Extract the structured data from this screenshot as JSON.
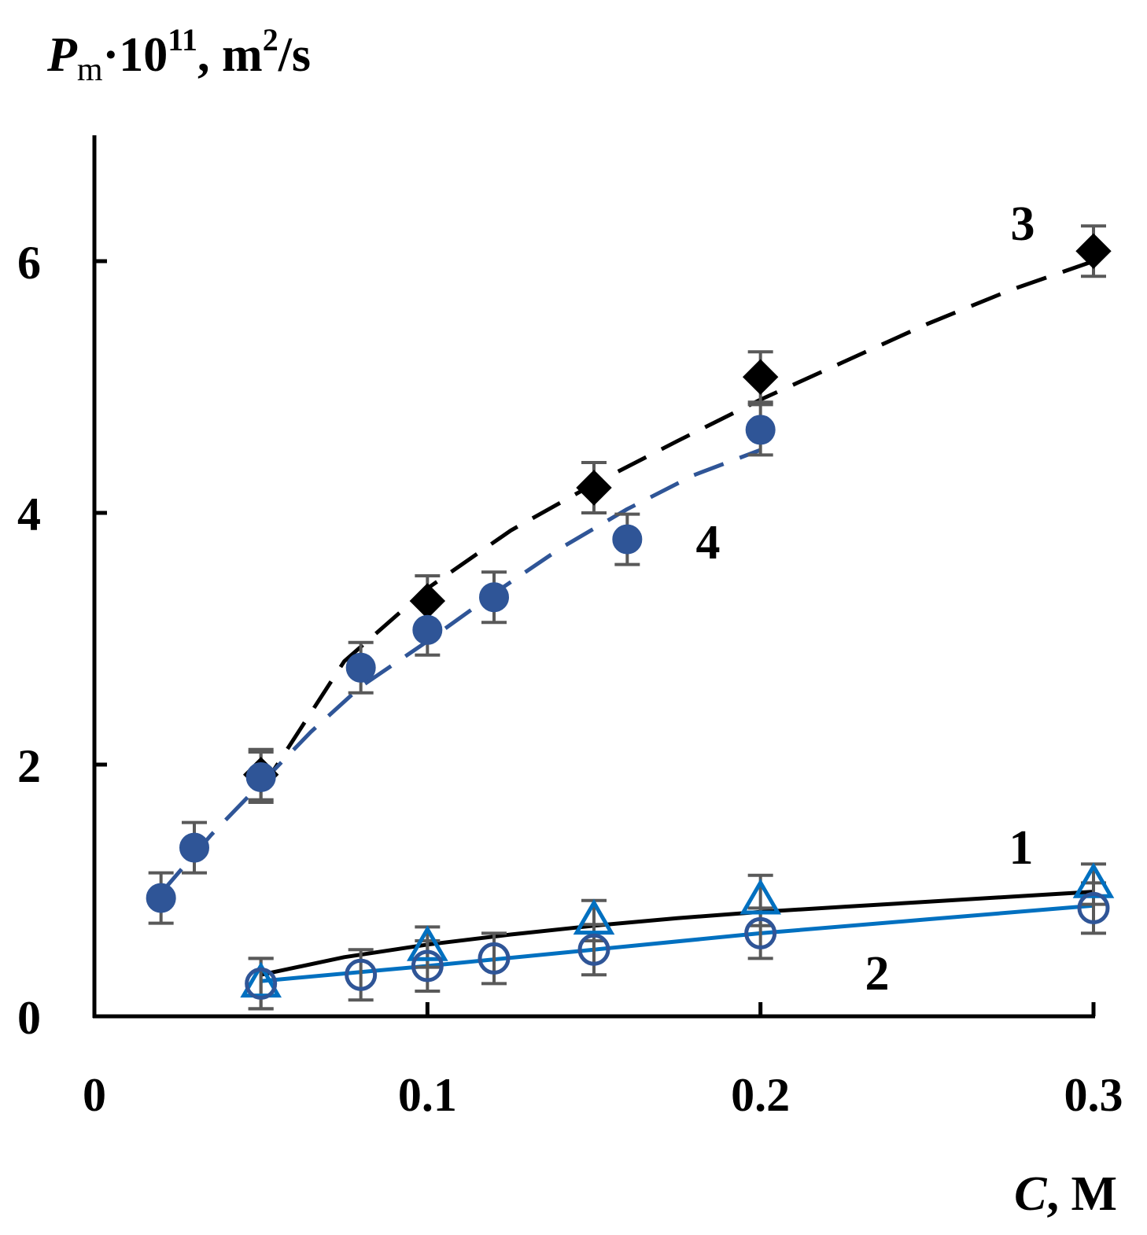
{
  "chart_data": {
    "type": "scatter",
    "title": "",
    "ylabel": {
      "symbol": "P",
      "subscript": "m",
      "text": "·10",
      "superscript": "11",
      "unit_prefix": ", m",
      "unit_sup": "2",
      "unit_suffix": "/s"
    },
    "xlabel": {
      "symbol": "C",
      "unit": ", M"
    },
    "xlim": [
      0,
      0.3
    ],
    "ylim": [
      0,
      7
    ],
    "x_ticks": [
      {
        "value": 0,
        "label": "0"
      },
      {
        "value": 0.1,
        "label": "0.1"
      },
      {
        "value": 0.2,
        "label": "0.2"
      },
      {
        "value": 0.3,
        "label": "0.3"
      }
    ],
    "y_ticks": [
      {
        "value": 0,
        "label": "0"
      },
      {
        "value": 2,
        "label": "2"
      },
      {
        "value": 4,
        "label": "4"
      },
      {
        "value": 6,
        "label": "6"
      }
    ],
    "grid": false,
    "colors": {
      "black": "#000000",
      "blue_dark": "#2f5597",
      "blue_light": "#0070c0",
      "error_bar": "#595959"
    },
    "series": [
      {
        "name": "1",
        "label": "1",
        "marker": "triangle",
        "color": "#0070c0",
        "points": [
          {
            "x": 0.05,
            "y": 0.26,
            "err": 0.2
          },
          {
            "x": 0.1,
            "y": 0.55,
            "err": 0.16
          },
          {
            "x": 0.15,
            "y": 0.76,
            "err": 0.16
          },
          {
            "x": 0.2,
            "y": 0.92,
            "err": 0.2
          },
          {
            "x": 0.3,
            "y": 1.05,
            "err": 0.16
          }
        ],
        "fit": {
          "style": "solid",
          "color": "#000000",
          "x": [
            0.05,
            0.075,
            0.1,
            0.125,
            0.15,
            0.175,
            0.2,
            0.225,
            0.25,
            0.275,
            0.3
          ],
          "y": [
            0.33,
            0.47,
            0.57,
            0.65,
            0.72,
            0.78,
            0.83,
            0.87,
            0.91,
            0.95,
            0.99
          ]
        }
      },
      {
        "name": "2",
        "label": "2",
        "marker": "circle-open",
        "color": "#2f5597",
        "points": [
          {
            "x": 0.05,
            "y": 0.26,
            "err": 0.2
          },
          {
            "x": 0.08,
            "y": 0.33,
            "err": 0.2
          },
          {
            "x": 0.1,
            "y": 0.4,
            "err": 0.2
          },
          {
            "x": 0.12,
            "y": 0.46,
            "err": 0.2
          },
          {
            "x": 0.15,
            "y": 0.53,
            "err": 0.2
          },
          {
            "x": 0.2,
            "y": 0.66,
            "err": 0.2
          },
          {
            "x": 0.3,
            "y": 0.86,
            "err": 0.2
          }
        ],
        "fit": {
          "style": "solid",
          "color": "#0070c0",
          "x": [
            0.05,
            0.1,
            0.15,
            0.2,
            0.25,
            0.3
          ],
          "y": [
            0.28,
            0.4,
            0.53,
            0.66,
            0.77,
            0.88
          ]
        }
      },
      {
        "name": "3",
        "label": "3",
        "marker": "diamond",
        "color": "#000000",
        "points": [
          {
            "x": 0.05,
            "y": 1.92,
            "err": 0.2
          },
          {
            "x": 0.1,
            "y": 3.3,
            "err": 0.2
          },
          {
            "x": 0.15,
            "y": 4.2,
            "err": 0.2
          },
          {
            "x": 0.2,
            "y": 5.08,
            "err": 0.2
          },
          {
            "x": 0.3,
            "y": 6.08,
            "err": 0.2
          }
        ],
        "fit": {
          "style": "dashed",
          "color": "#000000",
          "x": [
            0.05,
            0.075,
            0.1,
            0.125,
            0.15,
            0.175,
            0.2,
            0.225,
            0.25,
            0.275,
            0.3
          ],
          "y": [
            1.8,
            2.82,
            3.4,
            3.86,
            4.23,
            4.57,
            4.9,
            5.2,
            5.5,
            5.77,
            6.0
          ]
        }
      },
      {
        "name": "4",
        "label": "4",
        "marker": "circle-filled",
        "color": "#2f5597",
        "points": [
          {
            "x": 0.02,
            "y": 0.94,
            "err": 0.2
          },
          {
            "x": 0.03,
            "y": 1.34,
            "err": 0.2
          },
          {
            "x": 0.05,
            "y": 1.9,
            "err": 0.2
          },
          {
            "x": 0.08,
            "y": 2.77,
            "err": 0.2
          },
          {
            "x": 0.1,
            "y": 3.07,
            "err": 0.2
          },
          {
            "x": 0.12,
            "y": 3.33,
            "err": 0.2
          },
          {
            "x": 0.16,
            "y": 3.79,
            "err": 0.2
          },
          {
            "x": 0.2,
            "y": 4.66,
            "err": 0.2
          }
        ],
        "fit": {
          "style": "dashed",
          "color": "#2f5597",
          "x": [
            0.02,
            0.035,
            0.05,
            0.065,
            0.08,
            0.1,
            0.12,
            0.14,
            0.16,
            0.18,
            0.2
          ],
          "y": [
            0.98,
            1.44,
            1.85,
            2.26,
            2.62,
            2.98,
            3.36,
            3.72,
            4.03,
            4.3,
            4.5
          ]
        }
      }
    ]
  }
}
